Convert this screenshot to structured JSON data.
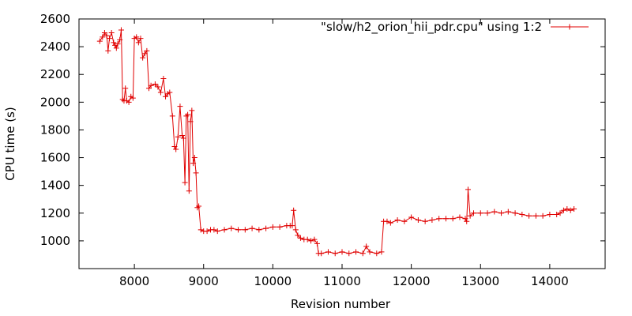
{
  "chart_data": {
    "type": "line",
    "title": "",
    "xlabel": "Revision number",
    "ylabel": "CPU time (s)",
    "xlim": [
      7200,
      14800
    ],
    "ylim": [
      800,
      2600
    ],
    "x_ticks": [
      8000,
      9000,
      10000,
      11000,
      12000,
      13000,
      14000
    ],
    "y_ticks": [
      1000,
      1200,
      1400,
      1600,
      1800,
      2000,
      2200,
      2400,
      2600
    ],
    "grid": false,
    "legend_position": "top-right",
    "series": [
      {
        "name": "\"slow/h2_orion_hii_pdr.cpu\" using 1:2",
        "color": "#e00000",
        "marker": "plus",
        "x": [
          7500,
          7540,
          7570,
          7600,
          7620,
          7640,
          7670,
          7700,
          7720,
          7740,
          7760,
          7790,
          7810,
          7830,
          7850,
          7870,
          7890,
          7920,
          7950,
          7980,
          8000,
          8030,
          8060,
          8090,
          8120,
          8150,
          8180,
          8210,
          8240,
          8300,
          8340,
          8380,
          8420,
          8450,
          8480,
          8510,
          8550,
          8580,
          8600,
          8630,
          8660,
          8690,
          8710,
          8730,
          8750,
          8770,
          8790,
          8810,
          8830,
          8850,
          8870,
          8890,
          8910,
          8930,
          8960,
          9000,
          9050,
          9100,
          9150,
          9200,
          9300,
          9400,
          9500,
          9600,
          9700,
          9800,
          9900,
          10000,
          10100,
          10200,
          10250,
          10280,
          10300,
          10330,
          10360,
          10400,
          10450,
          10500,
          10550,
          10600,
          10640,
          10660,
          10700,
          10800,
          10900,
          11000,
          11100,
          11200,
          11300,
          11350,
          11400,
          11500,
          11570,
          11600,
          11650,
          11700,
          11800,
          11900,
          12000,
          12100,
          12200,
          12300,
          12400,
          12500,
          12600,
          12700,
          12780,
          12800,
          12820,
          12850,
          12900,
          13000,
          13100,
          13200,
          13300,
          13400,
          13500,
          13600,
          13700,
          13800,
          13900,
          14000,
          14100,
          14150,
          14200,
          14250,
          14300,
          14350
        ],
        "y": [
          2440,
          2470,
          2500,
          2480,
          2370,
          2460,
          2500,
          2430,
          2410,
          2390,
          2420,
          2450,
          2520,
          2020,
          2010,
          2100,
          2010,
          2000,
          2040,
          2030,
          2460,
          2470,
          2430,
          2460,
          2320,
          2350,
          2370,
          2100,
          2120,
          2130,
          2110,
          2070,
          2170,
          2040,
          2060,
          2070,
          1900,
          1680,
          1660,
          1750,
          1970,
          1760,
          1740,
          1420,
          1900,
          1910,
          1360,
          1860,
          1940,
          1560,
          1600,
          1490,
          1240,
          1250,
          1080,
          1070,
          1070,
          1080,
          1080,
          1070,
          1080,
          1090,
          1080,
          1080,
          1090,
          1080,
          1090,
          1100,
          1100,
          1110,
          1110,
          1110,
          1220,
          1080,
          1040,
          1020,
          1010,
          1010,
          1000,
          1010,
          980,
          910,
          910,
          920,
          910,
          920,
          910,
          920,
          910,
          960,
          920,
          910,
          920,
          1140,
          1140,
          1130,
          1150,
          1140,
          1170,
          1150,
          1140,
          1150,
          1160,
          1160,
          1160,
          1170,
          1160,
          1140,
          1370,
          1180,
          1200,
          1200,
          1200,
          1210,
          1200,
          1210,
          1200,
          1190,
          1180,
          1180,
          1180,
          1190,
          1190,
          1200,
          1220,
          1230,
          1220,
          1230
        ]
      }
    ]
  }
}
